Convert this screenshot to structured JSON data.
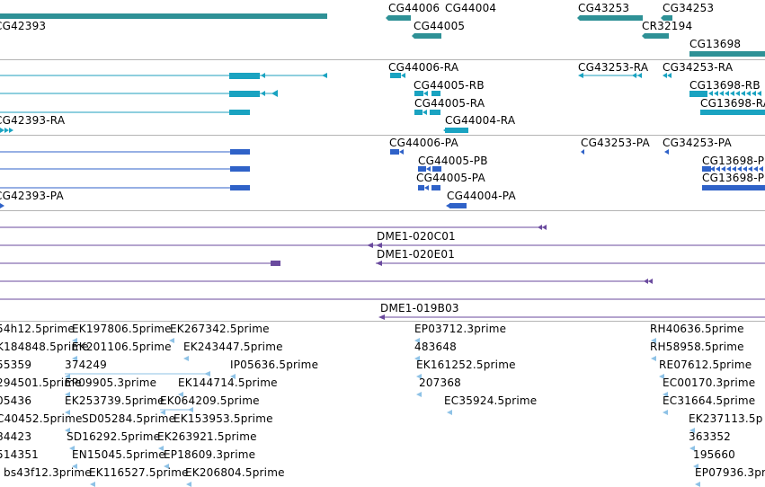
{
  "tracks": {
    "genes": {
      "labels": [
        "CG44006",
        "CG44004",
        "CG43253",
        "CG34253",
        "CG42393",
        "CG44005",
        "CR32194",
        "CG13698"
      ]
    },
    "transcripts_rna": {
      "labels": [
        "CG44006-RA",
        "CG43253-RA",
        "CG34253-RA",
        "CG44005-RB",
        "CG13698-RB",
        "CG44005-RA",
        "CG13698-RA",
        "CG42393-RA",
        "CG44004-RA"
      ]
    },
    "transcripts_protein": {
      "labels": [
        "CG44006-PA",
        "CG43253-PA",
        "CG34253-PA",
        "CG44005-PB",
        "CG13698-P",
        "CG44005-PA",
        "CG13698-P",
        "CG42393-PA",
        "CG44004-PA"
      ]
    },
    "clones": {
      "labels": [
        "DME1-020C01",
        "DME1-020E01",
        "DME1-019B03"
      ]
    },
    "ests": {
      "labels": [
        "54h12.5prime",
        "EK197806.5prime",
        "EK267342.5prime",
        "EP03712.3prime",
        "RH40636.5prime",
        "K184848.5prime",
        "EK201106.5prime",
        "EK243447.5prime",
        "483648",
        "RH58958.5prime",
        "55359",
        "374249",
        "IP05636.5prime",
        "EK161252.5prime",
        "RE07612.5prime",
        "294501.5prime",
        "EP09905.3prime",
        "EK144714.5prime",
        "207368",
        "EC00170.3prime",
        "05436",
        "EK253739.5prime",
        "EK064209.5prime",
        "EC35924.5prime",
        "EC31664.5prime",
        "C40452.5prime",
        "SD05284.5prime",
        "EK153953.5prime",
        "EK237113.5p",
        "84423",
        "SD16292.5prime",
        "EK263921.5prime",
        "363352",
        "514351",
        "EN15045.5prime",
        "EP18609.3prime",
        "195660",
        "bs43f12.3prime",
        "EK116527.5prime",
        "EK206804.5prime",
        "EP07936.3pri"
      ]
    }
  },
  "colors": {
    "gene": "#2e9196",
    "rna_line": "#1c9fbc",
    "rna_box": "#1aa3c1",
    "protein": "#2f62c8",
    "clone": "#6a4a9e",
    "est": "#8ec2e6",
    "divider": "#b4b4b4"
  }
}
